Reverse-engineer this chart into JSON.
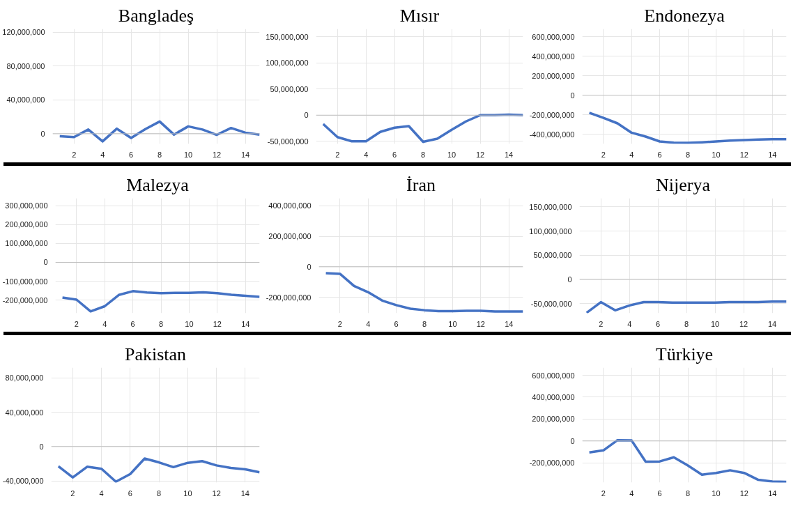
{
  "chart_data": [
    {
      "type": "line",
      "title": "Bangladeş",
      "x": [
        1,
        2,
        3,
        4,
        5,
        6,
        7,
        8,
        9,
        10,
        11,
        12,
        13,
        14,
        15
      ],
      "series": [
        {
          "color": "#4472c4",
          "values": [
            -3000000,
            -4000000,
            5000000,
            -9000000,
            6000000,
            -5000000,
            5500000,
            14500000,
            -1000000,
            8700000,
            5000000,
            -1300000,
            6800000,
            1300000,
            -1000000
          ]
        }
      ],
      "xlim": [
        0.5,
        15
      ],
      "xticks": [
        2,
        4,
        6,
        8,
        10,
        12,
        14
      ],
      "ylim": [
        -12000000,
        124000000
      ],
      "yticks": [
        {
          "value": 0,
          "label": "0"
        },
        {
          "value": 40000000,
          "label": "40,000,000"
        },
        {
          "value": 80000000,
          "label": "80,000,000"
        },
        {
          "value": 120000000,
          "label": "120,000,000"
        }
      ],
      "grid": true,
      "marker": "none",
      "line_style": "solid"
    },
    {
      "type": "line",
      "title": "Mısır",
      "x": [
        1,
        2,
        3,
        4,
        5,
        6,
        7,
        8,
        9,
        10,
        11,
        12,
        13,
        14,
        15
      ],
      "series": [
        {
          "color": "#4472c4",
          "values": [
            -17000000,
            -42000000,
            -50000000,
            -50000000,
            -32000000,
            -24000000,
            -21000000,
            -51000000,
            -45000000,
            -28000000,
            -12000000,
            0,
            0,
            1000000,
            0
          ]
        }
      ],
      "xlim": [
        0.5,
        15
      ],
      "xticks": [
        2,
        4,
        6,
        8,
        10,
        12,
        14
      ],
      "ylim": [
        -55000000,
        165000000
      ],
      "yticks": [
        {
          "value": -50000000,
          "label": "-50,000,000"
        },
        {
          "value": 0,
          "label": "0"
        },
        {
          "value": 50000000,
          "label": "50,000,000"
        },
        {
          "value": 100000000,
          "label": "100,000,000"
        },
        {
          "value": 150000000,
          "label": "150,000,000"
        }
      ],
      "grid": true,
      "marker": "none",
      "line_style": "solid"
    },
    {
      "type": "line",
      "title": "Endonezya",
      "x": [
        1,
        2,
        3,
        4,
        5,
        6,
        7,
        8,
        9,
        10,
        11,
        12,
        13,
        14,
        15
      ],
      "series": [
        {
          "color": "#4472c4",
          "values": [
            -181000000,
            -233000000,
            -289000000,
            -385000000,
            -425000000,
            -475000000,
            -487000000,
            -490000000,
            -484000000,
            -475000000,
            -466000000,
            -460000000,
            -455000000,
            -452000000,
            -452000000
          ]
        }
      ],
      "xlim": [
        0.5,
        15
      ],
      "xticks": [
        2,
        4,
        6,
        8,
        10,
        12,
        14
      ],
      "ylim": [
        -500000000,
        680000000
      ],
      "yticks": [
        {
          "value": -400000000,
          "label": "-400,000,000"
        },
        {
          "value": -200000000,
          "label": "-200,000,000"
        },
        {
          "value": 0,
          "label": "0"
        },
        {
          "value": 200000000,
          "label": "200,000,000"
        },
        {
          "value": 400000000,
          "label": "400,000,000"
        },
        {
          "value": 600000000,
          "label": "600,000,000"
        }
      ],
      "grid": true,
      "marker": "none",
      "line_style": "solid"
    },
    {
      "type": "line",
      "title": "Malezya",
      "x": [
        1,
        2,
        3,
        4,
        5,
        6,
        7,
        8,
        9,
        10,
        11,
        12,
        13,
        14,
        15
      ],
      "series": [
        {
          "color": "#4472c4",
          "values": [
            -187000000,
            -198000000,
            -260000000,
            -233000000,
            -173000000,
            -153000000,
            -160000000,
            -164000000,
            -162000000,
            -162000000,
            -159000000,
            -164000000,
            -172000000,
            -178000000,
            -183000000
          ]
        }
      ],
      "xlim": [
        0.5,
        15
      ],
      "xticks": [
        2,
        4,
        6,
        8,
        10,
        12,
        14
      ],
      "ylim": [
        -270000000,
        340000000
      ],
      "yticks": [
        {
          "value": -200000000,
          "label": "-200,000,000"
        },
        {
          "value": -100000000,
          "label": "-100,000,000"
        },
        {
          "value": 0,
          "label": "0"
        },
        {
          "value": 100000000,
          "label": "100,000,000"
        },
        {
          "value": 200000000,
          "label": "200,000,000"
        },
        {
          "value": 300000000,
          "label": "300,000,000"
        }
      ],
      "grid": true,
      "marker": "none",
      "line_style": "solid"
    },
    {
      "type": "line",
      "title": "İran",
      "x": [
        1,
        2,
        3,
        4,
        5,
        6,
        7,
        8,
        9,
        10,
        11,
        12,
        13,
        14,
        15
      ],
      "series": [
        {
          "color": "#4472c4",
          "values": [
            -42000000,
            -46000000,
            -126000000,
            -167000000,
            -222000000,
            -252000000,
            -275000000,
            -285000000,
            -291000000,
            -291000000,
            -289000000,
            -289000000,
            -293000000,
            -293000000,
            -293000000
          ]
        }
      ],
      "xlim": [
        0.5,
        15
      ],
      "xticks": [
        2,
        4,
        6,
        8,
        10,
        12,
        14
      ],
      "ylim": [
        -305000000,
        450000000
      ],
      "yticks": [
        {
          "value": -200000000,
          "label": "-200,000,000"
        },
        {
          "value": 0,
          "label": "0"
        },
        {
          "value": 200000000,
          "label": "200,000,000"
        },
        {
          "value": 400000000,
          "label": "400,000,000"
        }
      ],
      "grid": true,
      "marker": "none",
      "line_style": "solid"
    },
    {
      "type": "line",
      "title": "Nijerya",
      "x": [
        1,
        2,
        3,
        4,
        5,
        6,
        7,
        8,
        9,
        10,
        11,
        12,
        13,
        14,
        15
      ],
      "series": [
        {
          "color": "#4472c4",
          "values": [
            -69000000,
            -47000000,
            -64000000,
            -54000000,
            -47000000,
            -47000000,
            -48000000,
            -48000000,
            -48000000,
            -48000000,
            -47000000,
            -47000000,
            -47000000,
            -46000000,
            -46000000
          ]
        }
      ],
      "xlim": [
        0.5,
        15
      ],
      "xticks": [
        2,
        4,
        6,
        8,
        10,
        12,
        14
      ],
      "ylim": [
        -70000000,
        168000000
      ],
      "yticks": [
        {
          "value": -50000000,
          "label": "-50,000,000"
        },
        {
          "value": 0,
          "label": "0"
        },
        {
          "value": 50000000,
          "label": "50,000,000"
        },
        {
          "value": 100000000,
          "label": "100,000,000"
        },
        {
          "value": 150000000,
          "label": "150,000,000"
        }
      ],
      "grid": true,
      "marker": "none",
      "line_style": "solid"
    },
    {
      "type": "line",
      "title": "Pakistan",
      "x": [
        1,
        2,
        3,
        4,
        5,
        6,
        7,
        8,
        9,
        10,
        11,
        12,
        13,
        14,
        15
      ],
      "series": [
        {
          "color": "#4472c4",
          "values": [
            -23000000,
            -36000000,
            -23600000,
            -26000000,
            -41000000,
            -32000000,
            -14000000,
            -18500000,
            -24000000,
            -19000000,
            -17000000,
            -22000000,
            -25000000,
            -26500000,
            -30000000
          ]
        }
      ],
      "xlim": [
        0.5,
        15
      ],
      "xticks": [
        2,
        4,
        6,
        8,
        10,
        12,
        14
      ],
      "ylim": [
        -42000000,
        92000000
      ],
      "yticks": [
        {
          "value": -40000000,
          "label": "-40,000,000"
        },
        {
          "value": 0,
          "label": "0"
        },
        {
          "value": 40000000,
          "label": "40,000,000"
        },
        {
          "value": 80000000,
          "label": "80,000,000"
        }
      ],
      "grid": true,
      "marker": "none",
      "line_style": "solid"
    },
    {
      "type": "line",
      "title": "Türkiye",
      "x": [
        1,
        2,
        3,
        4,
        5,
        6,
        7,
        8,
        9,
        10,
        11,
        12,
        13,
        14,
        15
      ],
      "series": [
        {
          "color": "#4472c4",
          "values": [
            -105000000,
            -86000000,
            7000000,
            5000000,
            -189000000,
            -187000000,
            -149000000,
            -224000000,
            -308000000,
            -292000000,
            -268000000,
            -292000000,
            -355000000,
            -371000000,
            -373000000
          ]
        }
      ],
      "xlim": [
        0.5,
        15
      ],
      "xticks": [
        2,
        4,
        6,
        8,
        10,
        12,
        14
      ],
      "ylim": [
        -380000000,
        670000000
      ],
      "yticks": [
        {
          "value": -200000000,
          "label": "-200,000,000"
        },
        {
          "value": 0,
          "label": "0"
        },
        {
          "value": 200000000,
          "label": "200,000,000"
        },
        {
          "value": 400000000,
          "label": "400,000,000"
        },
        {
          "value": 600000000,
          "label": "600,000,000"
        }
      ],
      "grid": true,
      "marker": "none",
      "line_style": "solid"
    }
  ]
}
